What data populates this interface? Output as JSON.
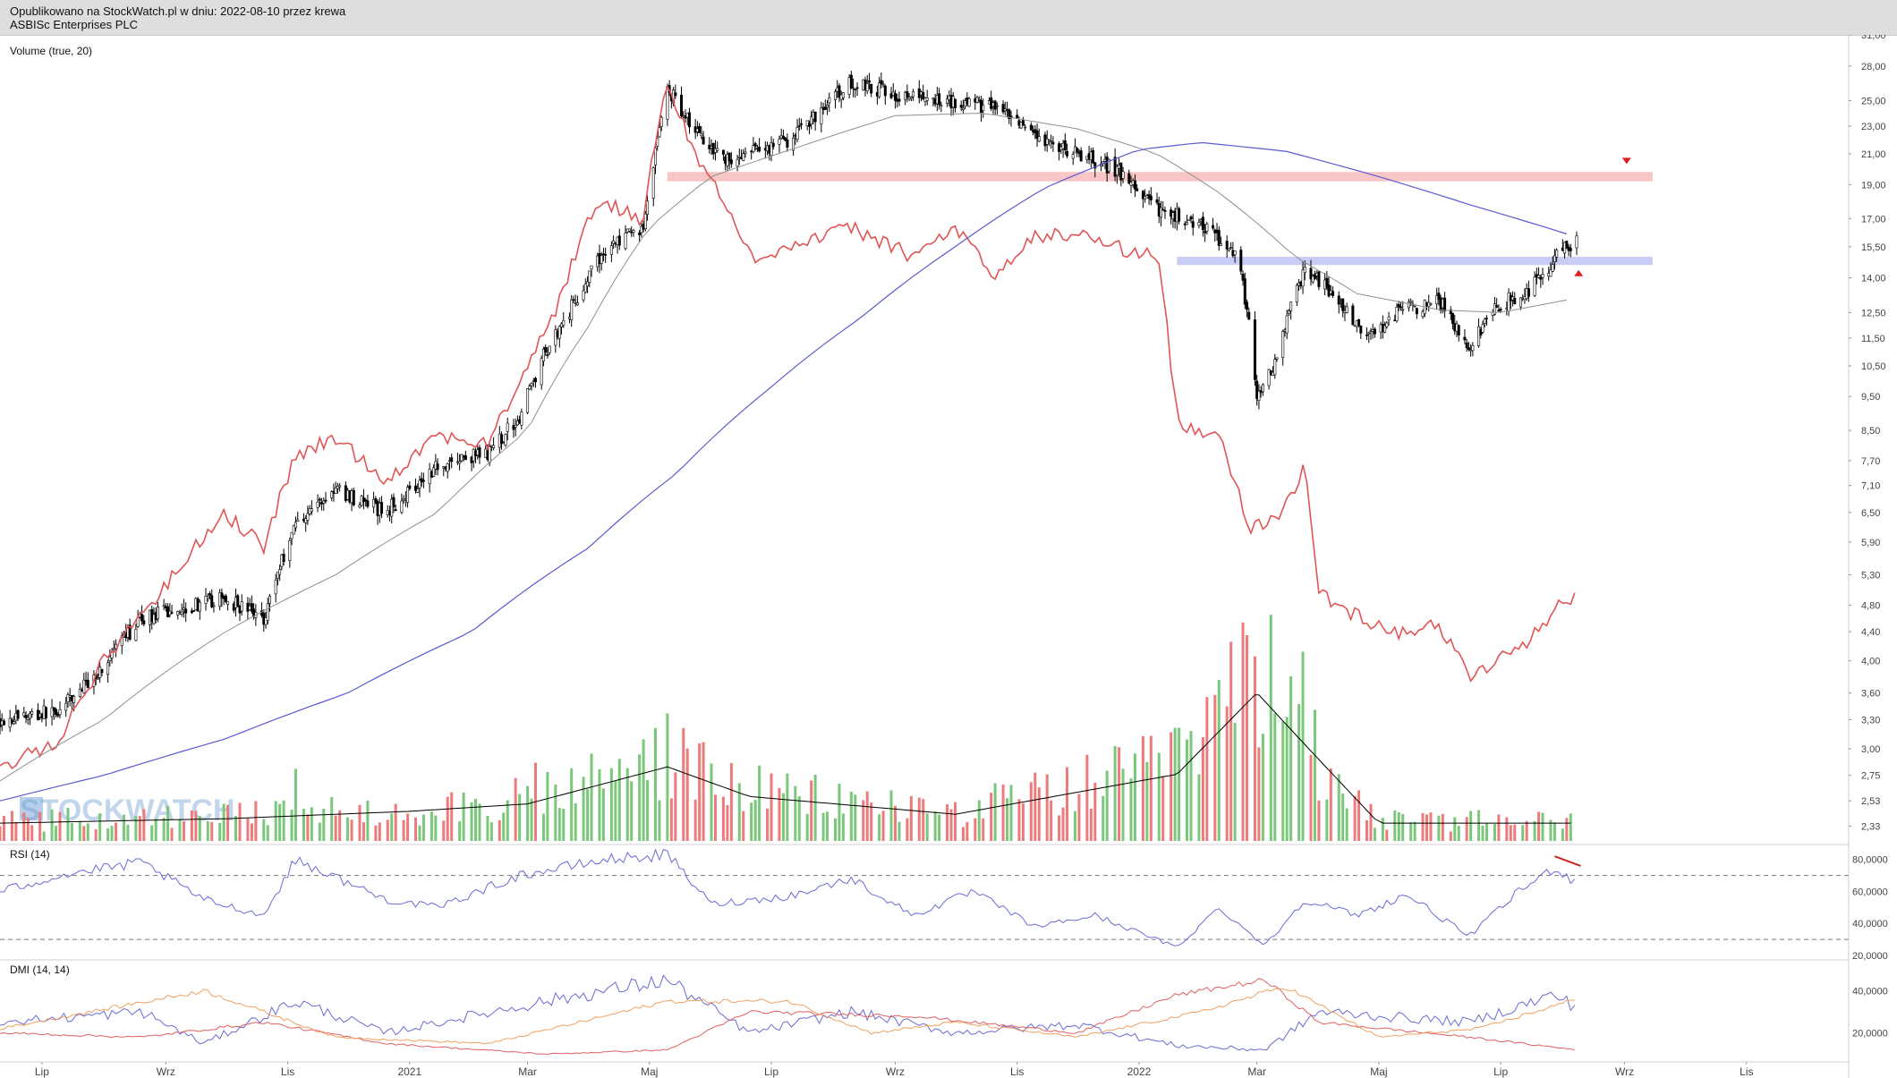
{
  "header": {
    "published": "Opublikowano na StockWatch.pl w dniu: 2022-08-10 przez krewa",
    "company": "ASBISc Enterprises PLC"
  },
  "watermark": "STOCKWATCH",
  "colors": {
    "candle": "#000000",
    "red_line": "#e05555",
    "ma_long": "#5a5ad0",
    "ma_short": "#909090",
    "resistance_band": "#f8c6c6",
    "support_band": "#c9cdf6",
    "vol_up": "#7bc77b",
    "vol_down": "#ee7b7b",
    "rsi_line": "#6a6ad6",
    "dmi_plus": "#6a6ad6",
    "dmi_minus": "#e06060",
    "adx": "#f0a060",
    "divergence": "#d02020"
  },
  "chart_data": [
    {
      "panel": "price",
      "type": "candlestick",
      "title": "Volume (true, 20)",
      "y_scale": "log",
      "ylim": [
        2.2,
        31.0
      ],
      "y_tick_labels": [
        "31,00",
        "28,00",
        "25,00",
        "23,00",
        "21,00",
        "19,00",
        "17,00",
        "15,50",
        "14,00",
        "12,50",
        "11,50",
        "10,50",
        "9,50",
        "8,50",
        "7,70",
        "7,10",
        "6,50",
        "5,90",
        "5,30",
        "4,80",
        "4,40",
        "4,00",
        "3,60",
        "3,30",
        "3,00",
        "2,75",
        "2,53",
        "2,33"
      ],
      "x_tick_labels": [
        "Lip",
        "Wrz",
        "Lis",
        "2021",
        "Mar",
        "Maj",
        "Lip",
        "Wrz",
        "Lis",
        "2022",
        "Mar",
        "Maj",
        "Lip",
        "Wrz",
        "Lis"
      ],
      "series": [
        {
          "kind": "close",
          "points": [
            [
              "2020-06-10",
              3.3
            ],
            [
              "2020-07-10",
              3.4
            ],
            [
              "2020-07-31",
              3.9
            ],
            [
              "2020-08-20",
              4.6
            ],
            [
              "2020-09-15",
              4.8
            ],
            [
              "2020-10-01",
              4.9
            ],
            [
              "2020-10-20",
              4.6
            ],
            [
              "2020-11-05",
              6.3
            ],
            [
              "2020-11-25",
              7.0
            ],
            [
              "2020-12-20",
              6.5
            ],
            [
              "2021-01-15",
              7.6
            ],
            [
              "2021-02-10",
              7.9
            ],
            [
              "2021-02-25",
              8.9
            ],
            [
              "2021-03-10",
              11.0
            ],
            [
              "2021-03-25",
              13.0
            ],
            [
              "2021-04-10",
              15.5
            ],
            [
              "2021-04-28",
              16.5
            ],
            [
              "2021-05-10",
              26.0
            ],
            [
              "2021-05-25",
              22.5
            ],
            [
              "2021-06-10",
              20.5
            ],
            [
              "2021-07-10",
              22.0
            ],
            [
              "2021-08-10",
              26.5
            ],
            [
              "2021-09-10",
              25.2
            ],
            [
              "2021-10-01",
              25.0
            ],
            [
              "2021-10-20",
              24.5
            ],
            [
              "2021-11-10",
              22.0
            ],
            [
              "2021-12-01",
              21.0
            ],
            [
              "2021-12-20",
              20.0
            ],
            [
              "2022-01-10",
              17.5
            ],
            [
              "2022-01-31",
              16.8
            ],
            [
              "2022-02-20",
              15.0
            ],
            [
              "2022-03-01",
              9.5
            ],
            [
              "2022-03-10",
              10.5
            ],
            [
              "2022-03-25",
              14.5
            ],
            [
              "2022-04-10",
              13.0
            ],
            [
              "2022-04-25",
              11.5
            ],
            [
              "2022-05-10",
              12.5
            ],
            [
              "2022-05-31",
              13.0
            ],
            [
              "2022-06-15",
              11.2
            ],
            [
              "2022-06-30",
              12.8
            ],
            [
              "2022-07-15",
              13.5
            ],
            [
              "2022-07-31",
              15.2
            ],
            [
              "2022-08-08",
              15.8
            ]
          ]
        },
        {
          "kind": "red_line",
          "points": [
            [
              "2020-06-10",
              2.8
            ],
            [
              "2020-07-10",
              3.1
            ],
            [
              "2020-08-01",
              4.0
            ],
            [
              "2020-09-01",
              5.1
            ],
            [
              "2020-09-30",
              6.5
            ],
            [
              "2020-10-20",
              5.8
            ],
            [
              "2020-11-05",
              7.8
            ],
            [
              "2020-11-25",
              8.3
            ],
            [
              "2020-12-20",
              7.2
            ],
            [
              "2021-01-15",
              8.4
            ],
            [
              "2021-02-10",
              8.1
            ],
            [
              "2021-02-25",
              10.0
            ],
            [
              "2021-03-15",
              12.5
            ],
            [
              "2021-04-05",
              18.0
            ],
            [
              "2021-04-28",
              17.0
            ],
            [
              "2021-05-10",
              26.5
            ],
            [
              "2021-05-25",
              20.5
            ],
            [
              "2021-06-05",
              18.5
            ],
            [
              "2021-06-20",
              15.0
            ],
            [
              "2021-07-10",
              15.5
            ],
            [
              "2021-08-10",
              16.5
            ],
            [
              "2021-09-10",
              15.0
            ],
            [
              "2021-10-01",
              16.5
            ],
            [
              "2021-10-20",
              14.0
            ],
            [
              "2021-11-10",
              16.0
            ],
            [
              "2021-12-01",
              16.2
            ],
            [
              "2021-12-20",
              15.5
            ],
            [
              "2022-01-10",
              15.0
            ],
            [
              "2022-01-20",
              8.7
            ],
            [
              "2022-02-10",
              8.4
            ],
            [
              "2022-02-25",
              6.2
            ],
            [
              "2022-03-10",
              6.3
            ],
            [
              "2022-03-25",
              7.5
            ],
            [
              "2022-04-01",
              5.0
            ],
            [
              "2022-04-15",
              4.7
            ],
            [
              "2022-05-10",
              4.4
            ],
            [
              "2022-05-31",
              4.5
            ],
            [
              "2022-06-15",
              3.8
            ],
            [
              "2022-06-30",
              4.0
            ],
            [
              "2022-07-15",
              4.3
            ],
            [
              "2022-07-31",
              4.8
            ],
            [
              "2022-08-08",
              5.0
            ]
          ]
        },
        {
          "kind": "ma_short",
          "points": [
            [
              "2020-06-10",
              2.7
            ],
            [
              "2020-08-01",
              3.3
            ],
            [
              "2020-10-01",
              4.4
            ],
            [
              "2020-11-25",
              5.3
            ],
            [
              "2021-01-15",
              6.5
            ],
            [
              "2021-03-01",
              8.5
            ],
            [
              "2021-04-01",
              12.0
            ],
            [
              "2021-05-01",
              16.5
            ],
            [
              "2021-06-01",
              19.5
            ],
            [
              "2021-07-15",
              21.5
            ],
            [
              "2021-09-01",
              23.8
            ],
            [
              "2021-10-15",
              24.0
            ],
            [
              "2021-12-01",
              22.8
            ],
            [
              "2022-01-10",
              21.0
            ],
            [
              "2022-02-10",
              18.5
            ],
            [
              "2022-03-20",
              15.0
            ],
            [
              "2022-04-20",
              13.3
            ],
            [
              "2022-06-01",
              12.6
            ],
            [
              "2022-07-01",
              12.5
            ],
            [
              "2022-08-08",
              13.1
            ]
          ]
        },
        {
          "kind": "ma_long",
          "points": [
            [
              "2020-06-10",
              2.53
            ],
            [
              "2020-08-01",
              2.75
            ],
            [
              "2020-10-01",
              3.1
            ],
            [
              "2020-12-01",
              3.6
            ],
            [
              "2021-02-01",
              4.4
            ],
            [
              "2021-04-01",
              5.8
            ],
            [
              "2021-05-15",
              7.4
            ],
            [
              "2021-07-01",
              9.8
            ],
            [
              "2021-08-15",
              12.3
            ],
            [
              "2021-10-01",
              15.5
            ],
            [
              "2021-11-15",
              18.8
            ],
            [
              "2022-01-01",
              21.3
            ],
            [
              "2022-02-01",
              21.8
            ],
            [
              "2022-03-15",
              21.2
            ],
            [
              "2022-05-01",
              19.5
            ],
            [
              "2022-06-15",
              17.8
            ],
            [
              "2022-08-08",
              16.0
            ]
          ]
        },
        {
          "kind": "resistance_band",
          "y_range": [
            19.2,
            19.8
          ],
          "x_range": [
            "2021-05-10",
            "2022-09-15"
          ]
        },
        {
          "kind": "support_band",
          "y_range": [
            14.6,
            15.0
          ],
          "x_range": [
            "2022-01-20",
            "2022-09-15"
          ]
        },
        {
          "kind": "marker_down",
          "date": "2022-09-02",
          "value": 20.5
        },
        {
          "kind": "marker_up",
          "date": "2022-08-09",
          "value": 14.2
        }
      ]
    },
    {
      "panel": "volume",
      "type": "bar",
      "title": "",
      "profile": [
        [
          "2020-06-10",
          0.12
        ],
        [
          "2020-10-01",
          0.15
        ],
        [
          "2021-01-01",
          0.2
        ],
        [
          "2021-03-01",
          0.25
        ],
        [
          "2021-05-10",
          0.5
        ],
        [
          "2021-06-20",
          0.3
        ],
        [
          "2021-10-01",
          0.18
        ],
        [
          "2022-01-20",
          0.45
        ],
        [
          "2022-03-01",
          1.0
        ],
        [
          "2022-03-25",
          0.65
        ],
        [
          "2022-05-01",
          0.12
        ],
        [
          "2022-08-08",
          0.12
        ]
      ],
      "spikes": [
        [
          "2022-02-25",
          1.0
        ],
        [
          "2022-03-25",
          0.92
        ],
        [
          "2022-01-20",
          0.55
        ],
        [
          "2021-05-10",
          0.62
        ],
        [
          "2021-04-10",
          0.52
        ],
        [
          "2020-11-05",
          0.35
        ],
        [
          "2021-03-05",
          0.38
        ],
        [
          "2022-03-10",
          0.58
        ]
      ]
    },
    {
      "panel": "rsi",
      "type": "line",
      "title": "RSI (14)",
      "ylim": [
        20,
        86
      ],
      "y_tick_labels": [
        "80,0000",
        "60,0000",
        "40,0000",
        "20,0000"
      ],
      "reference_lines": [
        70,
        30
      ],
      "points": [
        [
          "2020-06-10",
          60
        ],
        [
          "2020-07-10",
          70
        ],
        [
          "2020-08-20",
          78
        ],
        [
          "2020-09-20",
          55
        ],
        [
          "2020-10-20",
          45
        ],
        [
          "2020-11-05",
          80
        ],
        [
          "2020-12-20",
          55
        ],
        [
          "2021-01-15",
          50
        ],
        [
          "2021-02-25",
          70
        ],
        [
          "2021-04-10",
          80
        ],
        [
          "2021-05-10",
          83
        ],
        [
          "2021-06-01",
          52
        ],
        [
          "2021-07-10",
          57
        ],
        [
          "2021-08-10",
          68
        ],
        [
          "2021-09-10",
          45
        ],
        [
          "2021-10-10",
          60
        ],
        [
          "2021-11-10",
          38
        ],
        [
          "2021-12-10",
          45
        ],
        [
          "2022-01-20",
          25
        ],
        [
          "2022-02-10",
          50
        ],
        [
          "2022-03-05",
          26
        ],
        [
          "2022-03-25",
          55
        ],
        [
          "2022-04-20",
          45
        ],
        [
          "2022-05-15",
          58
        ],
        [
          "2022-06-15",
          32
        ],
        [
          "2022-07-10",
          60
        ],
        [
          "2022-07-28",
          75
        ],
        [
          "2022-08-08",
          65
        ]
      ],
      "divergence_line": [
        [
          "2022-07-28",
          82
        ],
        [
          "2022-08-10",
          76
        ]
      ]
    },
    {
      "panel": "dmi",
      "type": "line",
      "title": "DMI (14, 14)",
      "ylim": [
        8,
        52
      ],
      "y_tick_labels": [
        "40,0000",
        "20,0000"
      ],
      "series": [
        {
          "kind": "plus",
          "points": [
            [
              "2020-06-10",
              25
            ],
            [
              "2020-08-20",
              30
            ],
            [
              "2020-09-20",
              15
            ],
            [
              "2020-11-05",
              35
            ],
            [
              "2020-12-20",
              20
            ],
            [
              "2021-03-10",
              35
            ],
            [
              "2021-05-10",
              45
            ],
            [
              "2021-06-20",
              20
            ],
            [
              "2021-08-10",
              30
            ],
            [
              "2021-10-01",
              20
            ],
            [
              "2021-12-01",
              24
            ],
            [
              "2022-01-20",
              14
            ],
            [
              "2022-03-05",
              12
            ],
            [
              "2022-04-01",
              30
            ],
            [
              "2022-06-15",
              25
            ],
            [
              "2022-07-28",
              38
            ],
            [
              "2022-08-08",
              32
            ]
          ]
        },
        {
          "kind": "minus",
          "points": [
            [
              "2020-06-10",
              20
            ],
            [
              "2020-08-20",
              18
            ],
            [
              "2020-10-20",
              25
            ],
            [
              "2020-12-20",
              15
            ],
            [
              "2021-03-10",
              10
            ],
            [
              "2021-05-10",
              12
            ],
            [
              "2021-06-20",
              30
            ],
            [
              "2021-09-10",
              28
            ],
            [
              "2021-12-01",
              20
            ],
            [
              "2022-01-20",
              38
            ],
            [
              "2022-03-05",
              45
            ],
            [
              "2022-04-01",
              25
            ],
            [
              "2022-06-15",
              18
            ],
            [
              "2022-08-08",
              12
            ]
          ]
        },
        {
          "kind": "adx",
          "points": [
            [
              "2020-06-10",
              22
            ],
            [
              "2020-09-20",
              40
            ],
            [
              "2020-11-25",
              18
            ],
            [
              "2021-02-10",
              15
            ],
            [
              "2021-05-10",
              35
            ],
            [
              "2021-07-10",
              35
            ],
            [
              "2021-08-20",
              20
            ],
            [
              "2021-10-01",
              25
            ],
            [
              "2021-12-01",
              18
            ],
            [
              "2022-02-01",
              30
            ],
            [
              "2022-03-15",
              42
            ],
            [
              "2022-05-01",
              18
            ],
            [
              "2022-06-20",
              22
            ],
            [
              "2022-08-08",
              36
            ]
          ]
        }
      ]
    }
  ]
}
